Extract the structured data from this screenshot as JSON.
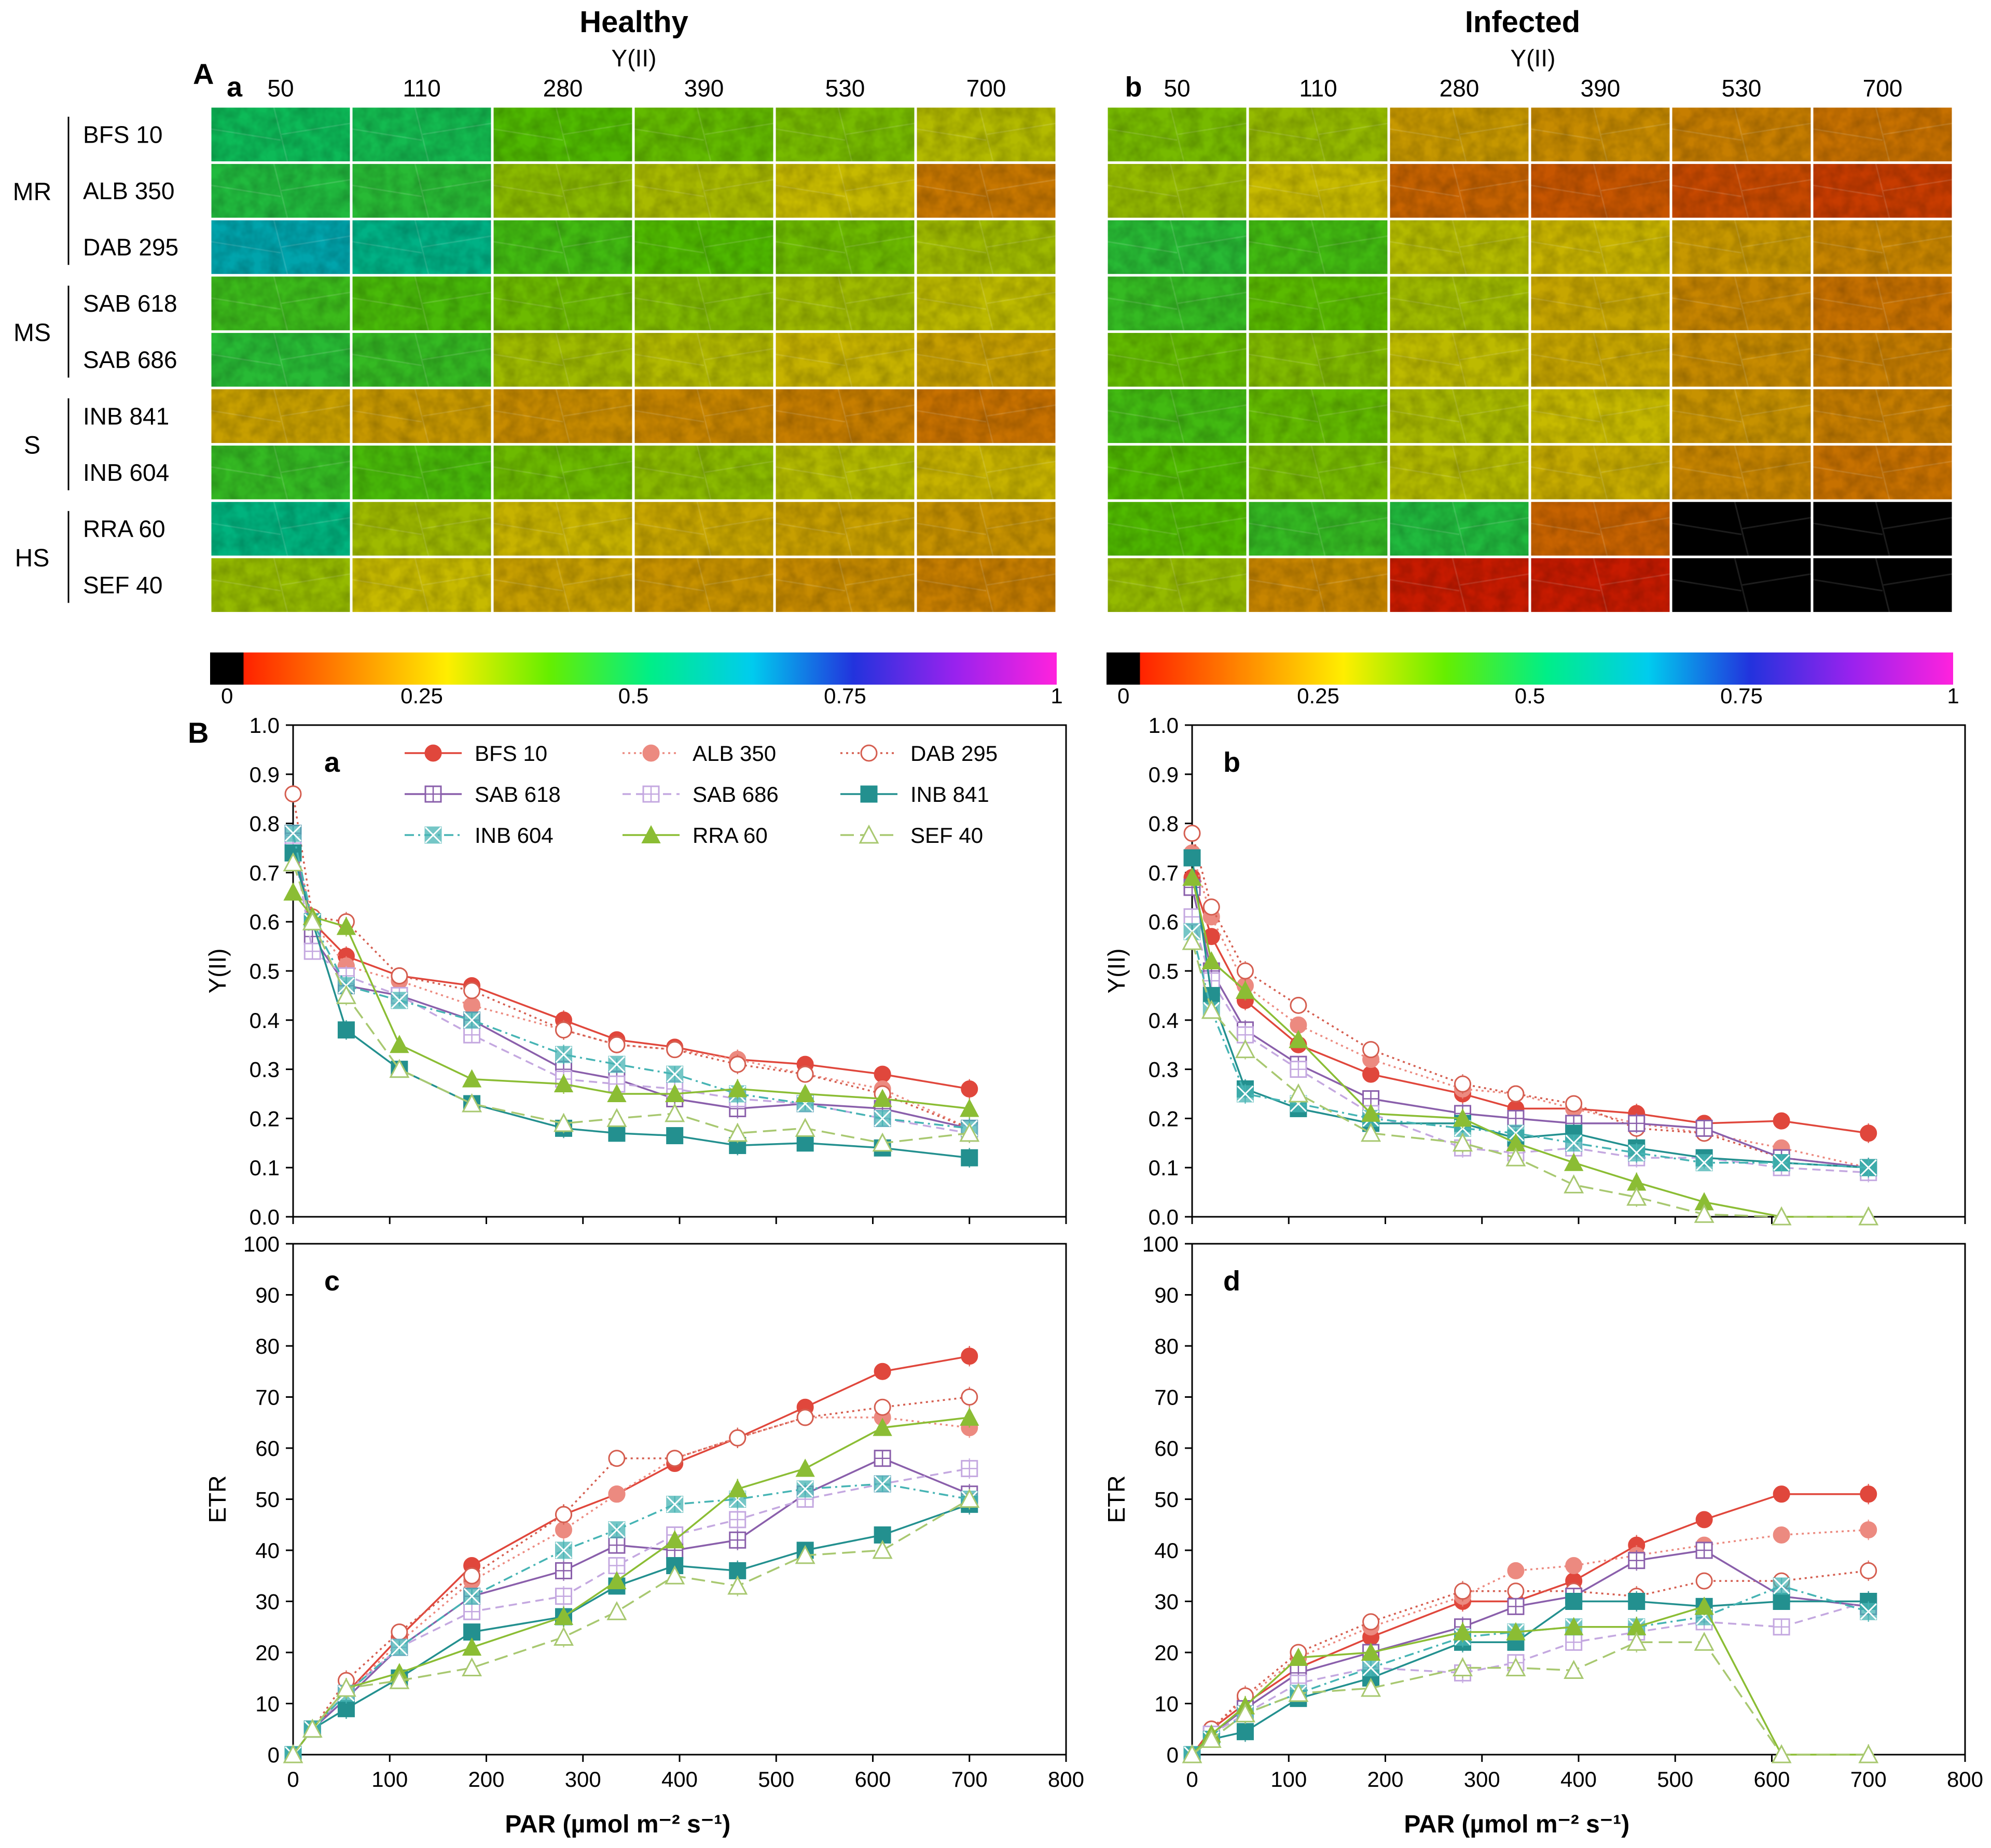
{
  "panel_A": {
    "label": "A",
    "healthy": {
      "title": "Healthy",
      "sublabel": "a"
    },
    "infected": {
      "title": "Infected",
      "sublabel": "b"
    },
    "yii_label": "Y(II)",
    "par_levels": [
      "50",
      "110",
      "280",
      "390",
      "530",
      "700"
    ],
    "groups": [
      {
        "name": "MR",
        "genotypes": [
          "BFS 10",
          "ALB 350",
          "DAB 295"
        ]
      },
      {
        "name": "MS",
        "genotypes": [
          "SAB 618",
          "SAB 686"
        ]
      },
      {
        "name": "S",
        "genotypes": [
          "INB 841",
          "INB 604"
        ]
      },
      {
        "name": "HS",
        "genotypes": [
          "RRA 60",
          "SEF 40"
        ]
      }
    ],
    "healthy_yii_estimates": [
      [
        0.5,
        0.49,
        0.4,
        0.38,
        0.36,
        0.3
      ],
      [
        0.47,
        0.46,
        0.34,
        0.31,
        0.28,
        0.18
      ],
      [
        0.62,
        0.56,
        0.42,
        0.4,
        0.37,
        0.32
      ],
      [
        0.43,
        0.41,
        0.37,
        0.35,
        0.32,
        0.29
      ],
      [
        0.46,
        0.44,
        0.32,
        0.3,
        0.27,
        0.24
      ],
      [
        0.24,
        0.23,
        0.21,
        0.2,
        0.19,
        0.17
      ],
      [
        0.44,
        0.41,
        0.37,
        0.34,
        0.3,
        0.27
      ],
      [
        0.55,
        0.32,
        0.27,
        0.25,
        0.24,
        0.22
      ],
      [
        0.33,
        0.28,
        0.24,
        0.22,
        0.21,
        0.19
      ]
    ],
    "infected_yii_estimates": [
      [
        0.36,
        0.33,
        0.23,
        0.21,
        0.19,
        0.17
      ],
      [
        0.33,
        0.28,
        0.15,
        0.13,
        0.11,
        0.09
      ],
      [
        0.46,
        0.42,
        0.3,
        0.27,
        0.23,
        0.2
      ],
      [
        0.44,
        0.39,
        0.32,
        0.25,
        0.2,
        0.17
      ],
      [
        0.38,
        0.35,
        0.29,
        0.25,
        0.21,
        0.19
      ],
      [
        0.42,
        0.38,
        0.31,
        0.28,
        0.22,
        0.19
      ],
      [
        0.4,
        0.36,
        0.3,
        0.26,
        0.2,
        0.17
      ],
      [
        0.4,
        0.44,
        0.47,
        0.15,
        0.02,
        0.0
      ],
      [
        0.33,
        0.2,
        0.04,
        0.04,
        0.01,
        0.0
      ]
    ],
    "colorbar": {
      "ticks": [
        "0",
        "0.25",
        "0.5",
        "0.75",
        "1"
      ],
      "stops": [
        "#000000",
        "#ff2200",
        "#ff8800",
        "#ffee00",
        "#66ee00",
        "#00ee88",
        "#00ccee",
        "#2233dd",
        "#9922ee",
        "#ff22dd"
      ]
    }
  },
  "panel_B_label": "B",
  "legend": [
    {
      "name": "BFS 10",
      "color": "#e0473c",
      "marker": "circle-filled",
      "dash": "solid"
    },
    {
      "name": "ALB 350",
      "color": "#ec8a80",
      "marker": "circle-filled",
      "dash": "dot"
    },
    {
      "name": "DAB 295",
      "color": "#d55e50",
      "marker": "circle-open",
      "dash": "dot"
    },
    {
      "name": "SAB 618",
      "color": "#8a5fab",
      "marker": "square-open-cross",
      "dash": "solid"
    },
    {
      "name": "SAB 686",
      "color": "#c4a8e0",
      "marker": "square-open-cross",
      "dash": "dash"
    },
    {
      "name": "INB 841",
      "color": "#23908f",
      "marker": "square-filled",
      "dash": "solid"
    },
    {
      "name": "INB 604",
      "color": "#46b4b4",
      "marker": "square-x",
      "dash": "dashdot"
    },
    {
      "name": "RRA 60",
      "color": "#8bbd34",
      "marker": "triangle-filled",
      "dash": "solid"
    },
    {
      "name": "SEF 40",
      "color": "#a8c870",
      "marker": "triangle-open",
      "dash": "longdash"
    }
  ],
  "chart_data": [
    {
      "type": "line",
      "panel": "a",
      "title": "Healthy Y(II)",
      "xlabel": "PAR (µmol m⁻² s⁻¹)",
      "ylabel": "Y(II)",
      "xlim": [
        0,
        800
      ],
      "ylim": [
        0,
        1.0
      ],
      "xticks": [
        0,
        100,
        200,
        300,
        400,
        500,
        600,
        700,
        800
      ],
      "yticks": [
        "0.0",
        "0.1",
        "0.2",
        "0.3",
        "0.4",
        "0.5",
        "0.6",
        "0.7",
        "0.8",
        "0.9",
        "1.0"
      ],
      "show_xticklabels": false,
      "x": [
        0,
        20,
        55,
        110,
        185,
        280,
        335,
        395,
        460,
        530,
        610,
        700
      ],
      "series": [
        {
          "name": "BFS 10",
          "values": [
            0.75,
            0.6,
            0.53,
            0.49,
            0.47,
            0.4,
            0.36,
            0.345,
            0.32,
            0.31,
            0.29,
            0.26
          ]
        },
        {
          "name": "ALB 350",
          "values": [
            0.78,
            0.6,
            0.51,
            0.48,
            0.43,
            0.38,
            0.35,
            0.34,
            0.32,
            0.29,
            0.26,
            0.18
          ]
        },
        {
          "name": "DAB 295",
          "values": [
            0.86,
            0.61,
            0.6,
            0.49,
            0.46,
            0.38,
            0.35,
            0.34,
            0.31,
            0.29,
            0.25,
            0.18
          ]
        },
        {
          "name": "SAB 618",
          "values": [
            0.78,
            0.57,
            0.47,
            0.45,
            0.4,
            0.3,
            0.28,
            0.24,
            0.22,
            0.23,
            0.22,
            0.18
          ]
        },
        {
          "name": "SAB 686",
          "values": [
            0.76,
            0.54,
            0.49,
            0.45,
            0.37,
            0.28,
            0.27,
            0.26,
            0.24,
            0.23,
            0.2,
            0.17
          ]
        },
        {
          "name": "INB 841",
          "values": [
            0.74,
            0.6,
            0.38,
            0.3,
            0.23,
            0.18,
            0.17,
            0.165,
            0.145,
            0.15,
            0.14,
            0.12
          ]
        },
        {
          "name": "INB 604",
          "values": [
            0.78,
            0.6,
            0.47,
            0.44,
            0.4,
            0.33,
            0.31,
            0.29,
            0.25,
            0.23,
            0.2,
            0.18
          ]
        },
        {
          "name": "RRA 60",
          "values": [
            0.66,
            0.61,
            0.59,
            0.35,
            0.28,
            0.27,
            0.25,
            0.25,
            0.26,
            0.25,
            0.24,
            0.22
          ]
        },
        {
          "name": "SEF 40",
          "values": [
            0.72,
            0.6,
            0.45,
            0.3,
            0.23,
            0.19,
            0.2,
            0.21,
            0.17,
            0.18,
            0.15,
            0.17
          ]
        }
      ]
    },
    {
      "type": "line",
      "panel": "b",
      "title": "Infected Y(II)",
      "xlabel": "PAR (µmol m⁻² s⁻¹)",
      "ylabel": "Y(II)",
      "xlim": [
        0,
        800
      ],
      "ylim": [
        0,
        1.0
      ],
      "xticks": [
        0,
        100,
        200,
        300,
        400,
        500,
        600,
        700,
        800
      ],
      "yticks": [
        "0.0",
        "0.1",
        "0.2",
        "0.3",
        "0.4",
        "0.5",
        "0.6",
        "0.7",
        "0.8",
        "0.9",
        "1.0"
      ],
      "show_xticklabels": false,
      "x": [
        0,
        20,
        55,
        110,
        185,
        280,
        335,
        395,
        460,
        530,
        610,
        700
      ],
      "series": [
        {
          "name": "BFS 10",
          "values": [
            0.69,
            0.57,
            0.44,
            0.35,
            0.29,
            0.25,
            0.22,
            0.22,
            0.21,
            0.19,
            0.195,
            0.17
          ]
        },
        {
          "name": "ALB 350",
          "values": [
            0.74,
            0.61,
            0.47,
            0.39,
            0.32,
            0.26,
            0.25,
            0.22,
            0.19,
            0.17,
            0.14,
            0.1
          ]
        },
        {
          "name": "DAB 295",
          "values": [
            0.78,
            0.63,
            0.5,
            0.43,
            0.34,
            0.27,
            0.25,
            0.23,
            0.18,
            0.17,
            0.12,
            0.1
          ]
        },
        {
          "name": "SAB 618",
          "values": [
            0.67,
            0.5,
            0.38,
            0.31,
            0.24,
            0.21,
            0.2,
            0.19,
            0.19,
            0.18,
            0.12,
            0.1
          ]
        },
        {
          "name": "SAB 686",
          "values": [
            0.61,
            0.48,
            0.37,
            0.3,
            0.21,
            0.14,
            0.13,
            0.14,
            0.12,
            0.12,
            0.1,
            0.09
          ]
        },
        {
          "name": "INB 841",
          "values": [
            0.73,
            0.45,
            0.26,
            0.22,
            0.19,
            0.19,
            0.16,
            0.17,
            0.14,
            0.12,
            0.11,
            0.1
          ]
        },
        {
          "name": "INB 604",
          "values": [
            0.58,
            0.42,
            0.25,
            0.23,
            0.2,
            0.18,
            0.17,
            0.15,
            0.13,
            0.11,
            0.11,
            0.1
          ]
        },
        {
          "name": "RRA 60",
          "values": [
            0.69,
            0.52,
            0.46,
            0.36,
            0.21,
            0.2,
            0.15,
            0.11,
            0.07,
            0.03,
            0.0,
            0.0
          ]
        },
        {
          "name": "SEF 40",
          "values": [
            0.56,
            0.42,
            0.34,
            0.25,
            0.17,
            0.15,
            0.12,
            0.065,
            0.04,
            0.005,
            0.0,
            0.0
          ]
        }
      ]
    },
    {
      "type": "line",
      "panel": "c",
      "title": "Healthy ETR",
      "xlabel": "PAR (µmol m⁻² s⁻¹)",
      "ylabel": "ETR",
      "xlim": [
        0,
        800
      ],
      "ylim": [
        0,
        100
      ],
      "xticks": [
        0,
        100,
        200,
        300,
        400,
        500,
        600,
        700,
        800
      ],
      "yticks": [
        "0",
        "10",
        "20",
        "30",
        "40",
        "50",
        "60",
        "70",
        "80",
        "90",
        "100"
      ],
      "show_xticklabels": true,
      "x": [
        0,
        20,
        55,
        110,
        185,
        280,
        335,
        395,
        460,
        530,
        610,
        700
      ],
      "series": [
        {
          "name": "BFS 10",
          "values": [
            0,
            5,
            12,
            23,
            37,
            47,
            51,
            57,
            62,
            68,
            75,
            78
          ]
        },
        {
          "name": "ALB 350",
          "values": [
            0,
            5,
            12,
            22,
            34,
            44,
            51,
            58,
            62,
            66,
            66,
            64
          ]
        },
        {
          "name": "DAB 295",
          "values": [
            0,
            5,
            14.5,
            24,
            35,
            47,
            58,
            58,
            62,
            66,
            68,
            70
          ]
        },
        {
          "name": "SAB 618",
          "values": [
            0,
            5,
            11,
            21,
            31,
            36,
            41,
            40,
            42,
            51,
            58,
            51
          ]
        },
        {
          "name": "SAB 686",
          "values": [
            0,
            5,
            12,
            21,
            28,
            31,
            37,
            43,
            46,
            50,
            53,
            56
          ]
        },
        {
          "name": "INB 841",
          "values": [
            0,
            5,
            9,
            15,
            24,
            27,
            33,
            37,
            36,
            40,
            43,
            49
          ]
        },
        {
          "name": "INB 604",
          "values": [
            0,
            5,
            12,
            21,
            31,
            40,
            44,
            49,
            50,
            52,
            53,
            50
          ]
        },
        {
          "name": "RRA 60",
          "values": [
            0,
            5,
            13,
            16,
            21,
            27,
            34,
            42,
            52,
            56,
            64,
            66
          ]
        },
        {
          "name": "SEF 40",
          "values": [
            0,
            5,
            13,
            14.5,
            17,
            23,
            28,
            35,
            33,
            39,
            40,
            50
          ]
        }
      ]
    },
    {
      "type": "line",
      "panel": "d",
      "title": "Infected ETR",
      "xlabel": "PAR (µmol m⁻² s⁻¹)",
      "ylabel": "ETR",
      "xlim": [
        0,
        800
      ],
      "ylim": [
        0,
        100
      ],
      "xticks": [
        0,
        100,
        200,
        300,
        400,
        500,
        600,
        700,
        800
      ],
      "yticks": [
        "0",
        "10",
        "20",
        "30",
        "40",
        "50",
        "60",
        "70",
        "80",
        "90",
        "100"
      ],
      "show_xticklabels": true,
      "x": [
        0,
        20,
        55,
        110,
        185,
        280,
        335,
        395,
        460,
        530,
        610,
        700
      ],
      "series": [
        {
          "name": "BFS 10",
          "values": [
            0,
            5,
            10,
            17,
            23,
            30,
            30,
            34,
            41,
            46,
            51,
            51
          ]
        },
        {
          "name": "ALB 350",
          "values": [
            0,
            5,
            11,
            19,
            25,
            31,
            36,
            37,
            39,
            41,
            43,
            44
          ]
        },
        {
          "name": "DAB 295",
          "values": [
            0,
            5,
            11.5,
            20,
            26,
            32,
            32,
            32,
            31,
            34,
            34,
            36
          ]
        },
        {
          "name": "SAB 618",
          "values": [
            0,
            4,
            9,
            16,
            20,
            25,
            29,
            31,
            38,
            40,
            31,
            29
          ]
        },
        {
          "name": "SAB 686",
          "values": [
            0,
            4,
            8,
            14,
            17,
            16,
            18,
            22,
            24,
            26,
            25,
            30
          ]
        },
        {
          "name": "INB 841",
          "values": [
            0,
            3,
            4.5,
            11,
            15,
            22,
            22,
            30,
            30,
            29,
            30,
            30
          ]
        },
        {
          "name": "INB 604",
          "values": [
            0,
            3,
            8,
            12,
            17,
            23,
            24,
            25,
            25,
            27,
            33,
            28
          ]
        },
        {
          "name": "RRA 60",
          "values": [
            0,
            4,
            9.5,
            19,
            20,
            24,
            24,
            25,
            25,
            29,
            0,
            0
          ]
        },
        {
          "name": "SEF 40",
          "values": [
            0,
            3,
            8,
            12,
            13,
            17,
            17,
            16.5,
            22,
            22,
            0,
            0
          ]
        }
      ]
    }
  ]
}
